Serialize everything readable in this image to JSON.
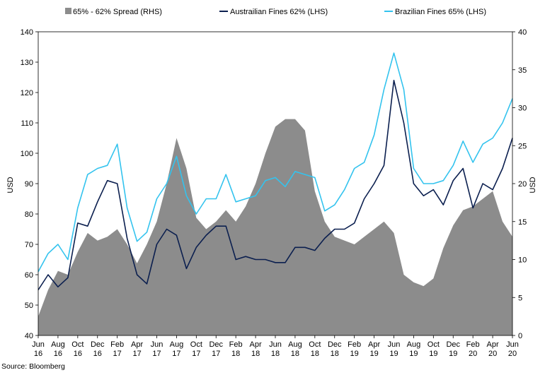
{
  "chart_data": {
    "type": "area+line",
    "legend": [
      {
        "label": "65% - 62% Spread (RHS)",
        "color": "#8c8c8c",
        "kind": "area"
      },
      {
        "label": "Austrailian Fines 62% (LHS)",
        "color": "#0b1f4f",
        "kind": "line"
      },
      {
        "label": "Brazilian Fines 65% (LHS)",
        "color": "#33c3ee",
        "kind": "line"
      }
    ],
    "ylabel_left": "USD",
    "ylabel_right": "USD",
    "ylim_left": [
      40,
      140
    ],
    "ylim_right": [
      0,
      40
    ],
    "yticks_left": [
      "40",
      "50",
      "60",
      "70",
      "80",
      "90",
      "100",
      "110",
      "120",
      "130",
      "140"
    ],
    "yticks_right": [
      "0",
      "5",
      "10",
      "15",
      "20",
      "25",
      "30",
      "35",
      "40"
    ],
    "xticks": [
      [
        "Jun",
        "16"
      ],
      [
        "Aug",
        "16"
      ],
      [
        "Oct",
        "16"
      ],
      [
        "Dec",
        "16"
      ],
      [
        "Feb",
        "17"
      ],
      [
        "Apr",
        "17"
      ],
      [
        "Jun",
        "17"
      ],
      [
        "Aug",
        "17"
      ],
      [
        "Oct",
        "17"
      ],
      [
        "Dec",
        "17"
      ],
      [
        "Feb",
        "18"
      ],
      [
        "Apr",
        "18"
      ],
      [
        "Jun",
        "18"
      ],
      [
        "Aug",
        "18"
      ],
      [
        "Oct",
        "18"
      ],
      [
        "Dec",
        "18"
      ],
      [
        "Feb",
        "19"
      ],
      [
        "Apr",
        "19"
      ],
      [
        "Jun",
        "19"
      ],
      [
        "Aug",
        "19"
      ],
      [
        "Oct",
        "19"
      ],
      [
        "Dec",
        "19"
      ],
      [
        "Feb",
        "20"
      ],
      [
        "Apr",
        "20"
      ],
      [
        "Jun",
        "20"
      ]
    ],
    "x": [
      "2016-06",
      "2016-07",
      "2016-08",
      "2016-09",
      "2016-10",
      "2016-11",
      "2016-12",
      "2017-01",
      "2017-02",
      "2017-03",
      "2017-04",
      "2017-05",
      "2017-06",
      "2017-07",
      "2017-08",
      "2017-09",
      "2017-10",
      "2017-11",
      "2017-12",
      "2018-01",
      "2018-02",
      "2018-03",
      "2018-04",
      "2018-05",
      "2018-06",
      "2018-07",
      "2018-08",
      "2018-09",
      "2018-10",
      "2018-11",
      "2018-12",
      "2019-01",
      "2019-02",
      "2019-03",
      "2019-04",
      "2019-05",
      "2019-06",
      "2019-07",
      "2019-08",
      "2019-09",
      "2019-10",
      "2019-11",
      "2019-12",
      "2020-01",
      "2020-02",
      "2020-03",
      "2020-04",
      "2020-05",
      "2020-06"
    ],
    "series": [
      {
        "name": "65% - 62% Spread (RHS)",
        "axis": "right",
        "values": [
          2.5,
          6,
          8.5,
          8,
          11,
          13.5,
          12.5,
          13,
          14,
          12,
          9.5,
          12,
          15,
          20,
          26,
          22,
          15.5,
          14,
          15,
          16.5,
          15,
          17,
          20,
          24,
          27.5,
          28.5,
          28.5,
          27,
          19,
          15,
          13,
          12.5,
          12,
          13,
          14,
          15,
          13.5,
          8,
          7,
          6.5,
          7.5,
          11.5,
          14.5,
          16.5,
          17,
          18,
          19,
          15,
          13
        ]
      },
      {
        "name": "Austrailian Fines 62% (LHS)",
        "axis": "left",
        "values": [
          55,
          60,
          56,
          59,
          77,
          76,
          84,
          91,
          90,
          72,
          60,
          57,
          70,
          75,
          73,
          62,
          69,
          73,
          76,
          76,
          65,
          66,
          65,
          65,
          64,
          64,
          69,
          69,
          68,
          72,
          75,
          75,
          77,
          85,
          90,
          96,
          124,
          110,
          90,
          86,
          88,
          83,
          91,
          95,
          82,
          90,
          88,
          95,
          105
        ]
      },
      {
        "name": "Brazilian Fines 65% (LHS)",
        "axis": "left",
        "values": [
          61,
          67,
          70,
          65,
          82,
          93,
          95,
          96,
          103,
          82,
          71,
          74,
          85,
          90,
          99,
          86,
          80,
          85,
          85,
          93,
          84,
          85,
          86,
          91,
          92,
          89,
          94,
          93,
          92,
          81,
          83,
          88,
          95,
          97,
          106,
          121,
          133,
          121,
          95,
          90,
          90,
          91,
          96,
          104,
          97,
          103,
          105,
          110,
          118
        ]
      }
    ]
  },
  "source": "Source: Bloomberg"
}
